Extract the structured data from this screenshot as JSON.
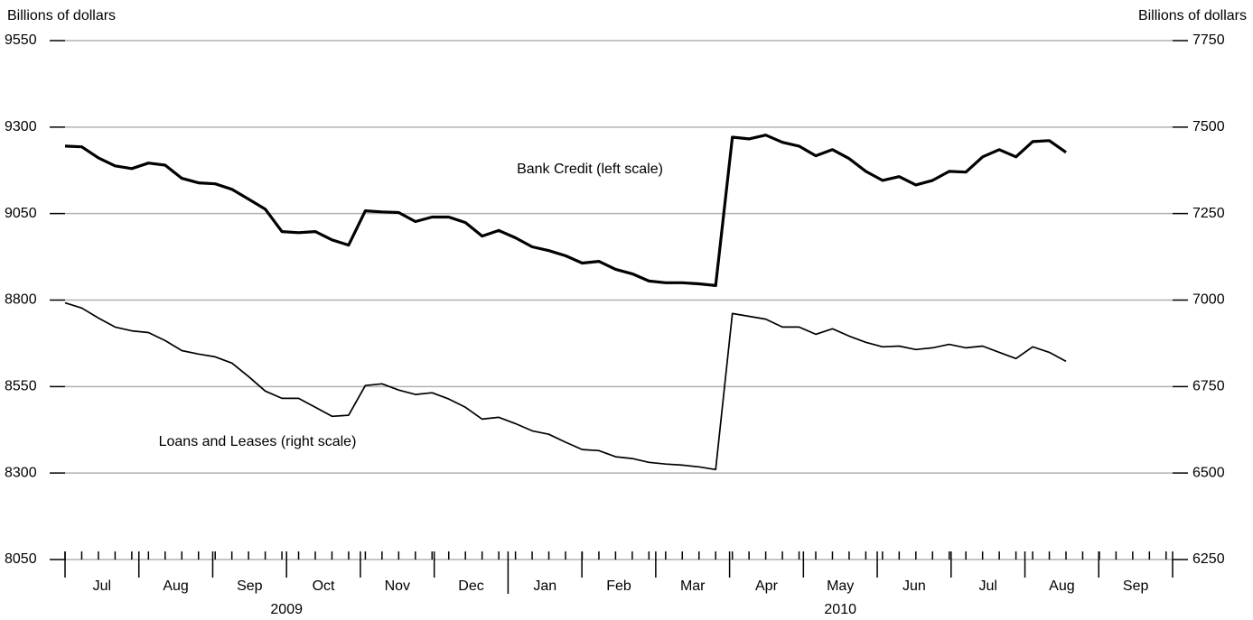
{
  "chart_data": {
    "type": "line",
    "y_label": "Billions of dollars",
    "y2_label": "Billions of dollars",
    "ylim": [
      8050,
      9550
    ],
    "yticks": [
      8050,
      8300,
      8550,
      8800,
      9050,
      9300,
      9550
    ],
    "y2lim": [
      6250,
      7750
    ],
    "y2ticks": [
      6250,
      6500,
      6750,
      7000,
      7250,
      7500,
      7750
    ],
    "grid": true,
    "months": [
      "Jul",
      "Aug",
      "Sep",
      "Oct",
      "Nov",
      "Dec",
      "Jan",
      "Feb",
      "Mar",
      "Apr",
      "May",
      "Jun",
      "Jul",
      "Aug",
      "Sep"
    ],
    "years": [
      "2009",
      "2010"
    ],
    "series": [
      {
        "name": "Bank Credit (left scale)",
        "color": "#000000",
        "values": [
          9245,
          9243,
          9211,
          9188,
          9180,
          9196,
          9190,
          9152,
          9139,
          9136,
          9120,
          9092,
          9063,
          8998,
          8995,
          8998,
          8974,
          8959,
          9058,
          9055,
          9053,
          9027,
          9040,
          9040,
          9024,
          8985,
          9001,
          8980,
          8954,
          8943,
          8928,
          8907,
          8912,
          8889,
          8876,
          8855,
          8850,
          8850,
          8847,
          8842,
          9271,
          9266,
          9277,
          9256,
          9245,
          9217,
          9235,
          9209,
          9172,
          9146,
          9157,
          9133,
          9146,
          9172,
          9170,
          9214,
          9235,
          9214,
          9258,
          9261,
          9227
        ]
      },
      {
        "name": "Loans and Leases (right scale)",
        "color": "#000000",
        "axis": "y2",
        "values": [
          6992,
          6977,
          6948,
          6922,
          6911,
          6906,
          6883,
          6854,
          6844,
          6836,
          6818,
          6779,
          6737,
          6716,
          6716,
          6690,
          6664,
          6667,
          6753,
          6758,
          6740,
          6727,
          6732,
          6714,
          6690,
          6656,
          6661,
          6643,
          6622,
          6612,
          6589,
          6568,
          6565,
          6547,
          6542,
          6531,
          6526,
          6523,
          6518,
          6510,
          6961,
          6953,
          6945,
          6922,
          6922,
          6901,
          6917,
          6896,
          6878,
          6865,
          6867,
          6857,
          6862,
          6872,
          6862,
          6867,
          6849,
          6831,
          6865,
          6849,
          6823
        ]
      }
    ]
  }
}
